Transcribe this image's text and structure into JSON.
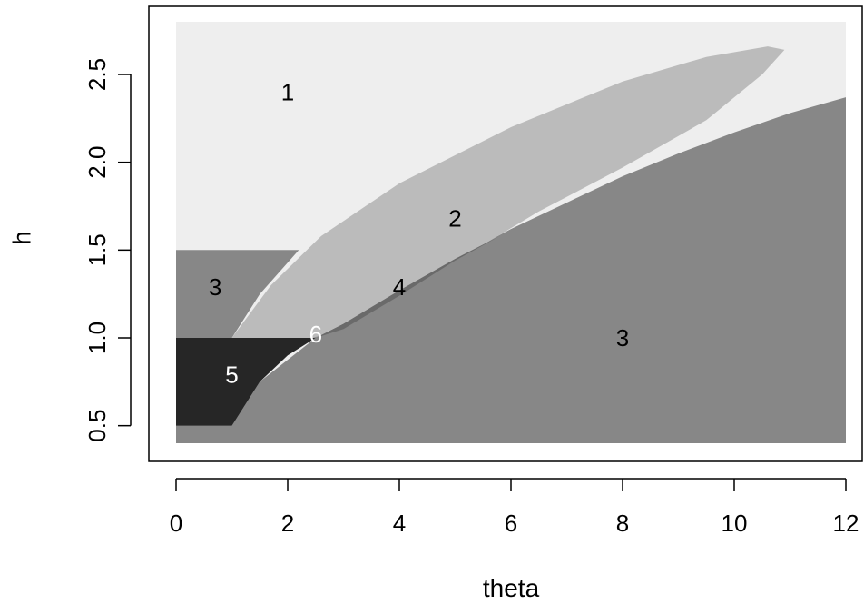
{
  "chart_data": {
    "type": "area",
    "title": "",
    "xlabel": "theta",
    "ylabel": "h",
    "xlim": [
      0,
      12
    ],
    "ylim": [
      0.4,
      2.8
    ],
    "grid": false,
    "legend": "none",
    "x_ticks": [
      0,
      2,
      4,
      6,
      8,
      10,
      12
    ],
    "x_tick_labels": [
      "0",
      "2",
      "4",
      "6",
      "8",
      "10",
      "12"
    ],
    "y_ticks": [
      0.5,
      1.0,
      1.5,
      2.0,
      2.5
    ],
    "y_tick_labels": [
      "0.5",
      "1.0",
      "1.5",
      "2.0",
      "2.5"
    ],
    "regions": [
      {
        "label": "1",
        "color": "#eeeeee",
        "label_pos": [
          2.0,
          2.4
        ],
        "label_color": "#000000",
        "boundary": [
          [
            0,
            0.4
          ],
          [
            12,
            0.4
          ],
          [
            12,
            2.8
          ],
          [
            0,
            2.8
          ]
        ]
      },
      {
        "label": "3",
        "color": "#878787",
        "label_pos": [
          0.7,
          1.29
        ],
        "label_color": "#000000",
        "boundary": [
          [
            0,
            0.4
          ],
          [
            0,
            1.5
          ],
          [
            2.2,
            1.5
          ],
          [
            1.5,
            1.25
          ],
          [
            1.0,
            1.0
          ],
          [
            0,
            1.0
          ]
        ]
      },
      {
        "label": "3",
        "color": "#878787",
        "label_pos": [
          8.0,
          1.0
        ],
        "label_color": "#000000",
        "boundary": [
          [
            0,
            0.4
          ],
          [
            0,
            0.5
          ],
          [
            1.0,
            0.5
          ],
          [
            1.5,
            0.75
          ],
          [
            2.5,
            1.0
          ],
          [
            3.0,
            1.08
          ],
          [
            4.0,
            1.27
          ],
          [
            5.0,
            1.45
          ],
          [
            6.0,
            1.62
          ],
          [
            7.0,
            1.77
          ],
          [
            8.0,
            1.92
          ],
          [
            9.0,
            2.05
          ],
          [
            10.0,
            2.17
          ],
          [
            11.0,
            2.28
          ],
          [
            12.0,
            2.37
          ],
          [
            12.0,
            0.4
          ]
        ]
      },
      {
        "label": "2",
        "color": "#bbbbbb",
        "label_pos": [
          5.0,
          1.68
        ],
        "label_color": "#000000",
        "boundary": [
          [
            1.0,
            1.0
          ],
          [
            2.5,
            1.0
          ],
          [
            3.0,
            1.08
          ],
          [
            4.0,
            1.27
          ],
          [
            5.0,
            1.45
          ],
          [
            5.5,
            1.53
          ],
          [
            6.5,
            1.72
          ],
          [
            8.0,
            1.97
          ],
          [
            9.5,
            2.24
          ],
          [
            10.5,
            2.5
          ],
          [
            10.9,
            2.64
          ],
          [
            10.6,
            2.66
          ],
          [
            9.5,
            2.6
          ],
          [
            8.0,
            2.46
          ],
          [
            6.0,
            2.2
          ],
          [
            4.0,
            1.88
          ],
          [
            2.6,
            1.58
          ],
          [
            1.7,
            1.3
          ],
          [
            1.0,
            1.0
          ]
        ]
      },
      {
        "label": "4",
        "color": "#6a6a6a",
        "label_pos": [
          4.0,
          1.29
        ],
        "label_color": "#000000",
        "boundary": [
          [
            2.5,
            1.0
          ],
          [
            3.0,
            1.08
          ],
          [
            4.0,
            1.27
          ],
          [
            5.0,
            1.45
          ],
          [
            5.8,
            1.58
          ],
          [
            5.0,
            1.44
          ],
          [
            4.0,
            1.24
          ],
          [
            3.0,
            1.05
          ],
          [
            2.5,
            1.0
          ]
        ]
      },
      {
        "label": "5",
        "color": "#262626",
        "label_pos": [
          1.0,
          0.79
        ],
        "label_color": "#ffffff",
        "boundary": [
          [
            0,
            0.5
          ],
          [
            1.0,
            0.5
          ],
          [
            1.5,
            0.75
          ],
          [
            2.0,
            0.9
          ],
          [
            2.5,
            1.0
          ],
          [
            0,
            1.0
          ]
        ]
      },
      {
        "label": "6",
        "color": "#878787",
        "label_pos": [
          2.5,
          1.02
        ],
        "label_color": "#ffffff",
        "boundary": [
          [
            2.45,
            1.0
          ],
          [
            2.5,
            1.0
          ],
          [
            2.55,
            1.01
          ]
        ]
      }
    ]
  }
}
